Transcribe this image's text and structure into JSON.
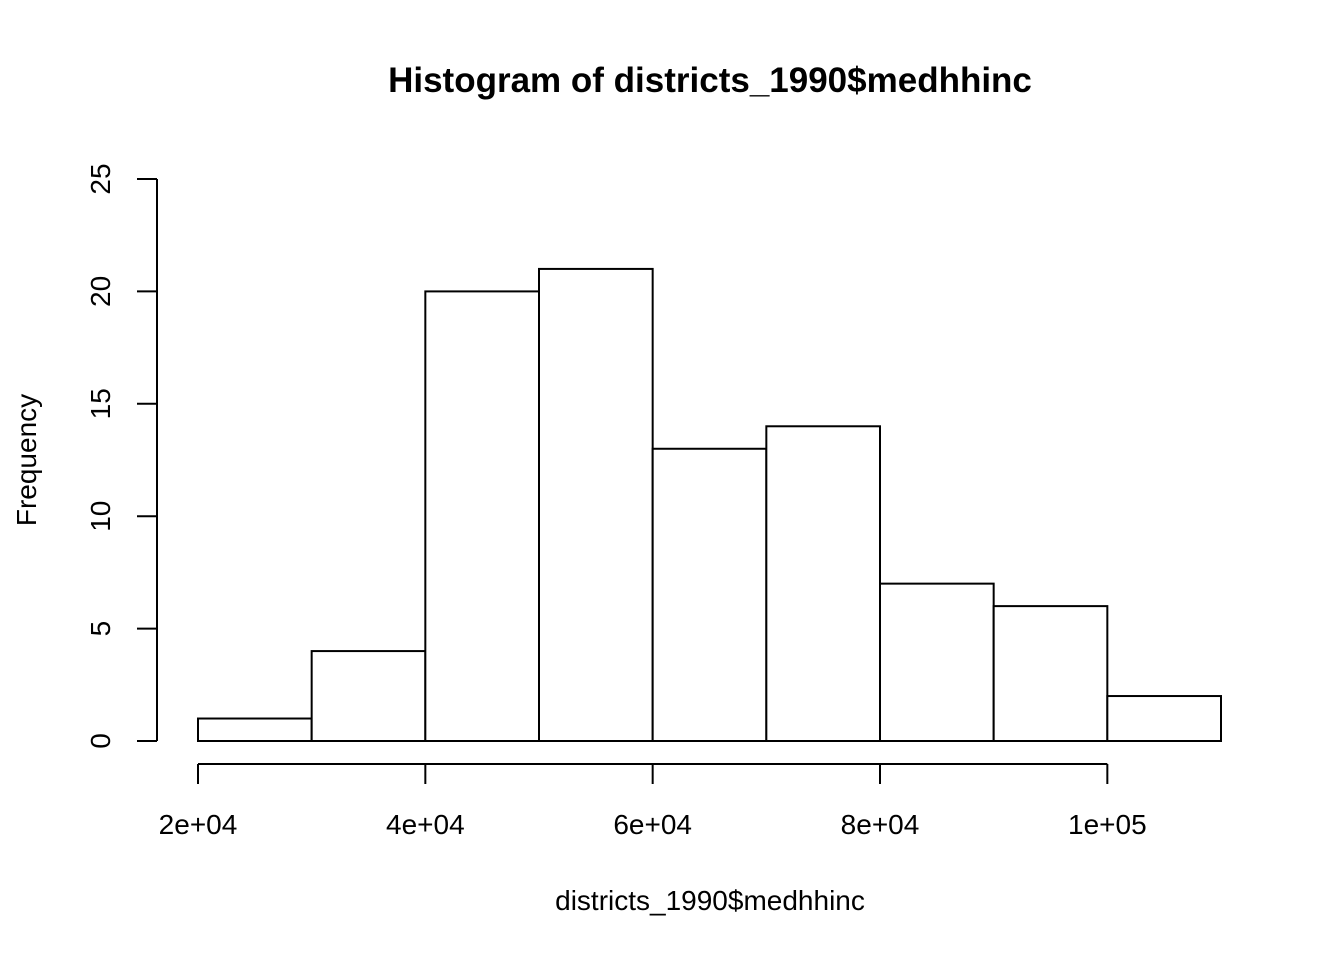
{
  "chart_data": {
    "type": "bar",
    "title": "Histogram of districts_1990$medhhinc",
    "xlabel": "districts_1990$medhhinc",
    "ylabel": "Frequency",
    "bins": [
      {
        "start": 20000,
        "end": 30000,
        "count": 1
      },
      {
        "start": 30000,
        "end": 40000,
        "count": 4
      },
      {
        "start": 40000,
        "end": 50000,
        "count": 20
      },
      {
        "start": 50000,
        "end": 60000,
        "count": 21
      },
      {
        "start": 60000,
        "end": 70000,
        "count": 13
      },
      {
        "start": 70000,
        "end": 80000,
        "count": 14
      },
      {
        "start": 80000,
        "end": 90000,
        "count": 7
      },
      {
        "start": 90000,
        "end": 100000,
        "count": 6
      },
      {
        "start": 100000,
        "end": 110000,
        "count": 2
      }
    ],
    "xlim": [
      20000,
      110000
    ],
    "ylim": [
      0,
      25
    ],
    "x_ticks": [
      {
        "value": 20000,
        "label": "2e+04"
      },
      {
        "value": 40000,
        "label": "4e+04"
      },
      {
        "value": 60000,
        "label": "6e+04"
      },
      {
        "value": 80000,
        "label": "8e+04"
      },
      {
        "value": 100000,
        "label": "1e+05"
      }
    ],
    "y_ticks": [
      {
        "value": 0,
        "label": "0"
      },
      {
        "value": 5,
        "label": "5"
      },
      {
        "value": 10,
        "label": "10"
      },
      {
        "value": 15,
        "label": "15"
      },
      {
        "value": 20,
        "label": "20"
      },
      {
        "value": 25,
        "label": "25"
      }
    ],
    "grid": false,
    "legend": "none"
  }
}
